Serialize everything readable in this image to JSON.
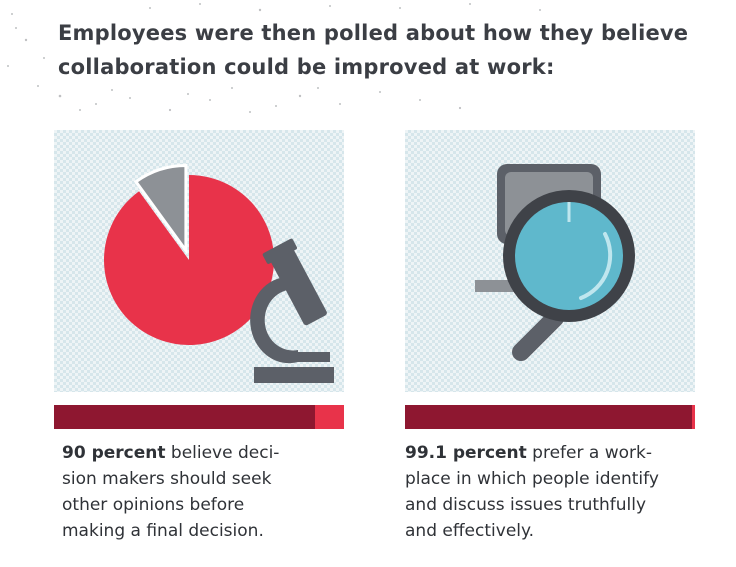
{
  "headline": {
    "line1": "Employees were then polled about how they believe",
    "line2": "collaboration could be improved at work:"
  },
  "stats": [
    {
      "percent_value": 90,
      "bold": "90 percent",
      "text_line1": " believe deci-",
      "text_line2": "sion makers should seek",
      "text_line3": "other opinions before",
      "text_line4": "making a final decision.",
      "icon": "microscope-icon",
      "chart": "pie-chart"
    },
    {
      "percent_value": 99.1,
      "bold": "99.1 percent",
      "text_line1": " prefer a work-",
      "text_line2": "place in which people identify",
      "text_line3": "and discuss issues truthfully",
      "text_line4": "and effectively.",
      "icon": "magnifying-glass-icon",
      "chart": "monitor-icon"
    }
  ],
  "colors": {
    "accent_red": "#e8334a",
    "dark_red": "#8e1730",
    "slate": "#5c6068",
    "gray": "#8d9196",
    "lens_blue": "#5fb8cc",
    "text": "#2f3237"
  }
}
